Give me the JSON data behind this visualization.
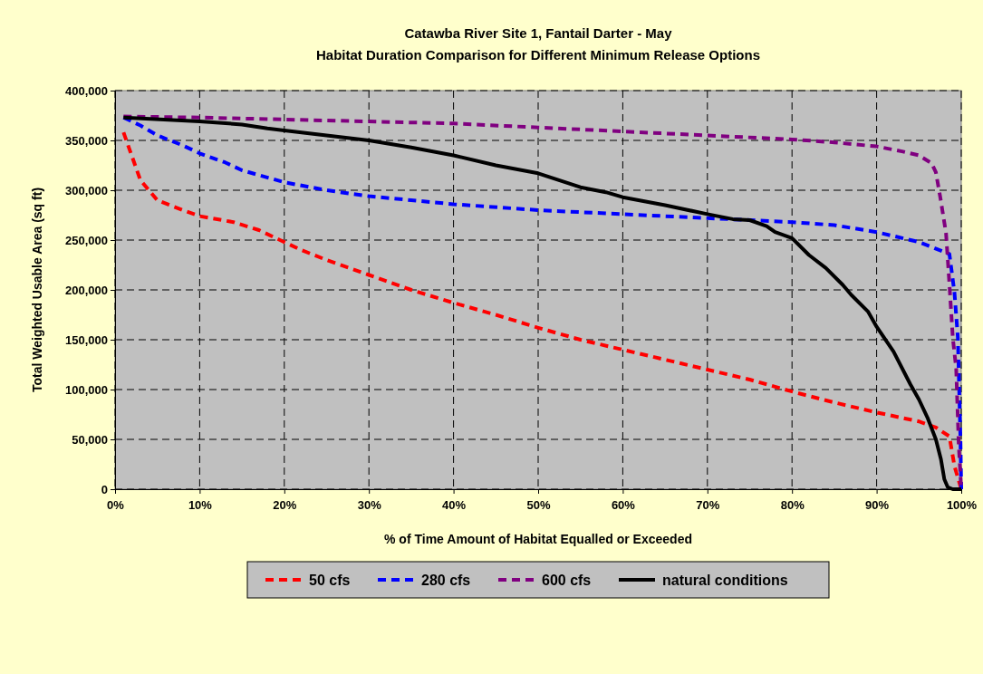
{
  "chart_data": {
    "type": "line",
    "title": "Catawba River Site 1, Fantail Darter - May",
    "subtitle": "Habitat Duration Comparison for Different Minimum Release Options",
    "xlabel": "% of Time Amount of Habitat Equalled or Exceeded",
    "ylabel": "Total Weighted Usable Area (sq ft)",
    "xlim": [
      0,
      100
    ],
    "xticks": [
      {
        "value": 0,
        "label": "0%"
      },
      {
        "value": 10,
        "label": "10%"
      },
      {
        "value": 20,
        "label": "20%"
      },
      {
        "value": 30,
        "label": "30%"
      },
      {
        "value": 40,
        "label": "40%"
      },
      {
        "value": 50,
        "label": "50%"
      },
      {
        "value": 60,
        "label": "60%"
      },
      {
        "value": 70,
        "label": "70%"
      },
      {
        "value": 80,
        "label": "80%"
      },
      {
        "value": 90,
        "label": "90%"
      },
      {
        "value": 100,
        "label": "100%"
      }
    ],
    "ylim": [
      0,
      400000
    ],
    "yticks": [
      {
        "value": 0,
        "label": "0"
      },
      {
        "value": 50000,
        "label": "50,000"
      },
      {
        "value": 100000,
        "label": "100,000"
      },
      {
        "value": 150000,
        "label": "150,000"
      },
      {
        "value": 200000,
        "label": "200,000"
      },
      {
        "value": 250000,
        "label": "250,000"
      },
      {
        "value": 300000,
        "label": "300,000"
      },
      {
        "value": 350000,
        "label": "350,000"
      },
      {
        "value": 400000,
        "label": "400,000"
      }
    ],
    "grid": true,
    "legend": "bottom",
    "marker": "none",
    "series": [
      {
        "name": "50 cfs",
        "color": "#ff0000",
        "line_style": "dashed",
        "x": [
          1,
          3,
          5,
          8,
          10,
          14,
          17,
          20,
          22,
          25,
          30,
          35,
          40,
          45,
          50,
          55,
          60,
          65,
          70,
          75,
          80,
          85,
          90,
          95,
          97,
          98.6,
          99.2,
          100
        ],
        "values": [
          358000,
          310000,
          290000,
          280000,
          274000,
          268000,
          260000,
          248000,
          240000,
          230000,
          215000,
          200000,
          187000,
          175000,
          162000,
          150000,
          140000,
          130000,
          120000,
          110000,
          98000,
          87000,
          77000,
          68000,
          62000,
          53000,
          23000,
          0
        ]
      },
      {
        "name": "280 cfs",
        "color": "#0000ff",
        "line_style": "dashed",
        "x": [
          1,
          3,
          5,
          8,
          10,
          13,
          15,
          20,
          25,
          30,
          35,
          40,
          50,
          60,
          70,
          80,
          85,
          90,
          95,
          98.6,
          99.2,
          99.6,
          99.9,
          100
        ],
        "values": [
          373000,
          365000,
          355000,
          345000,
          337000,
          328000,
          320000,
          308000,
          300000,
          294000,
          290000,
          286000,
          280000,
          276000,
          272000,
          268000,
          265000,
          258000,
          248000,
          236000,
          197000,
          152000,
          52000,
          0
        ]
      },
      {
        "name": "600 cfs",
        "color": "#800080",
        "line_style": "dashed",
        "x": [
          1,
          10,
          20,
          30,
          40,
          50,
          60,
          70,
          80,
          85,
          90,
          93,
          95,
          96.5,
          97,
          97.5,
          98.2,
          98.6,
          99,
          99.4,
          99.7,
          100
        ],
        "values": [
          374000,
          373000,
          371000,
          369000,
          367000,
          363000,
          359000,
          355000,
          351000,
          348000,
          344000,
          339000,
          335000,
          327000,
          318000,
          294000,
          257000,
          206000,
          152000,
          121000,
          45000,
          0
        ]
      },
      {
        "name": "natural conditions",
        "color": "#000000",
        "line_style": "solid",
        "x": [
          1,
          10,
          15,
          18,
          20,
          25,
          30,
          35,
          40,
          45,
          50,
          55,
          58,
          60,
          65,
          70,
          73,
          75,
          77,
          78,
          80,
          82,
          84,
          86,
          87,
          89,
          90,
          92,
          94,
          95,
          96,
          97,
          97.6,
          98,
          98.4,
          99,
          100
        ],
        "values": [
          373000,
          369000,
          366000,
          362000,
          360000,
          355000,
          350000,
          343000,
          335000,
          325000,
          317000,
          303000,
          298000,
          293000,
          285000,
          276000,
          271000,
          270000,
          264000,
          258000,
          252000,
          235000,
          222000,
          205000,
          195000,
          178000,
          163000,
          138000,
          105000,
          90000,
          72000,
          50000,
          30000,
          10000,
          2000,
          0,
          0
        ]
      }
    ]
  }
}
